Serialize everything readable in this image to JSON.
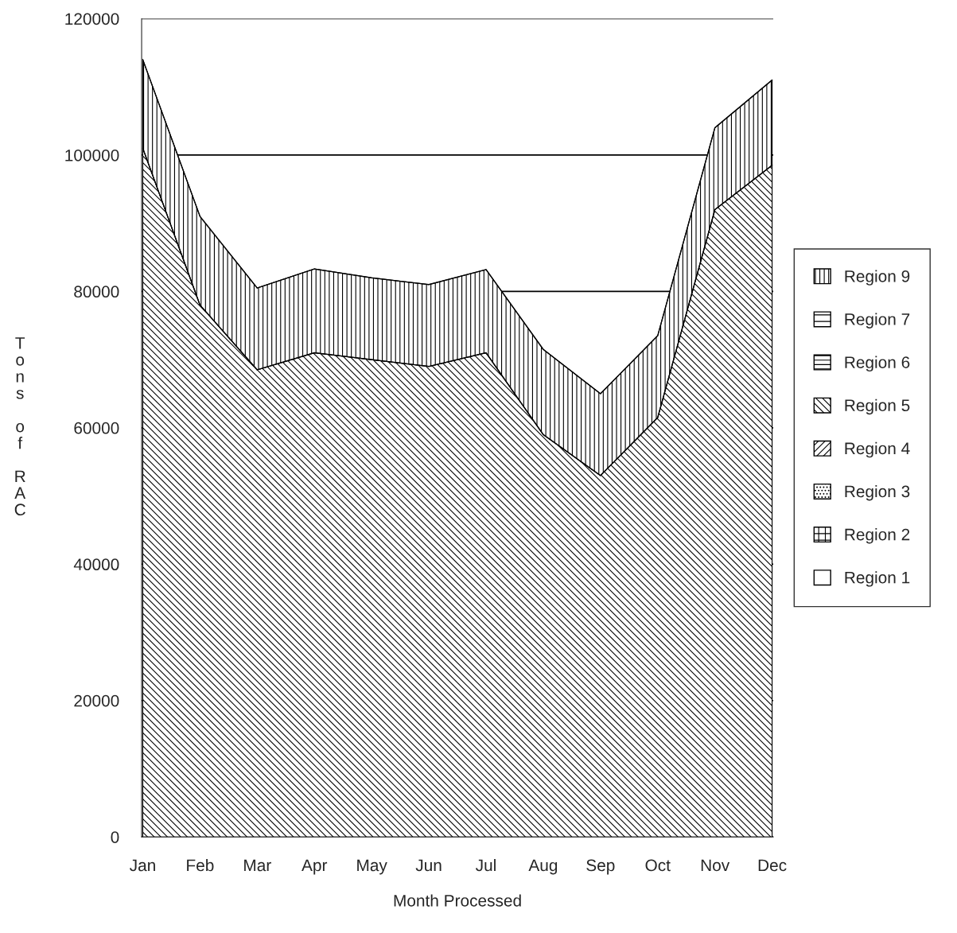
{
  "chart_data": {
    "type": "area",
    "stacked": true,
    "xlabel": "Month Processed",
    "ylabel": "Tons of RAC",
    "categories": [
      "Jan",
      "Feb",
      "Mar",
      "Apr",
      "May",
      "Jun",
      "Jul",
      "Aug",
      "Sep",
      "Oct",
      "Nov",
      "Dec"
    ],
    "series": [
      {
        "name": "Region 1",
        "color": "#000000",
        "values": [
          null,
          null,
          null,
          null,
          null,
          null,
          null,
          null,
          null,
          null,
          null,
          null
        ]
      },
      {
        "name": "Region 2",
        "color": "#000000",
        "values": [
          null,
          null,
          null,
          null,
          null,
          null,
          null,
          null,
          null,
          null,
          null,
          null
        ]
      },
      {
        "name": "Region 3",
        "color": "#000000",
        "values": [
          null,
          null,
          null,
          null,
          null,
          null,
          null,
          null,
          null,
          null,
          null,
          null
        ]
      },
      {
        "name": "Region 4",
        "color": "#000000",
        "values": [
          null,
          null,
          null,
          null,
          null,
          null,
          null,
          null,
          null,
          null,
          null,
          null
        ]
      },
      {
        "name": "Region 5",
        "color": "#000000",
        "values": [
          101000,
          78000,
          68500,
          71000,
          70000,
          69000,
          71000,
          59000,
          53000,
          61500,
          92000,
          98500
        ]
      },
      {
        "name": "Region 6",
        "color": "#000000",
        "values": [
          null,
          null,
          null,
          null,
          null,
          null,
          null,
          null,
          null,
          null,
          null,
          null
        ]
      },
      {
        "name": "Region 7",
        "color": "#000000",
        "values": [
          null,
          null,
          null,
          null,
          null,
          null,
          null,
          null,
          null,
          null,
          null,
          null
        ]
      },
      {
        "name": "Region 9",
        "color": "#000000",
        "values": [
          13000,
          13000,
          12000,
          12300,
          12000,
          12000,
          12200,
          12500,
          12000,
          12000,
          12000,
          12500
        ]
      }
    ],
    "ylim": [
      0,
      120000
    ],
    "yticks": [
      0,
      20000,
      40000,
      60000,
      80000,
      100000,
      120000
    ],
    "grid": "y",
    "legend": "right"
  }
}
